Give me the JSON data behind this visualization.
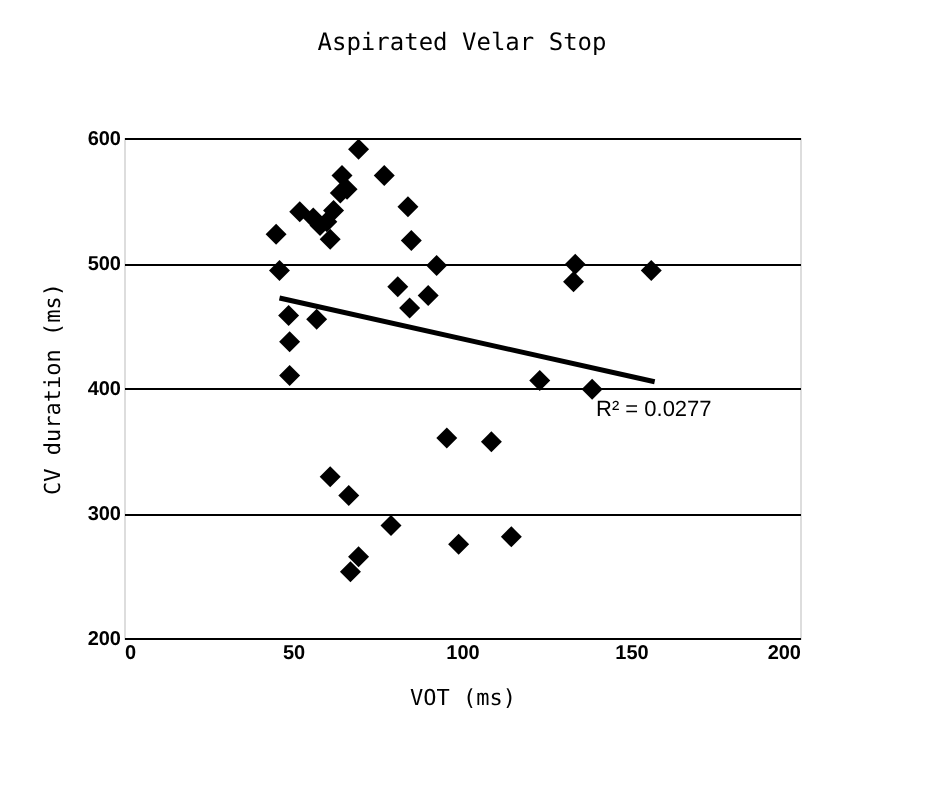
{
  "chart_data": {
    "type": "scatter",
    "title": "Aspirated Velar Stop",
    "xlabel": "VOT (ms)",
    "ylabel": "CV duration (ms)",
    "xlim": [
      0,
      200
    ],
    "xticks": [
      0,
      50,
      100,
      150,
      200
    ],
    "ylim": [
      200,
      600
    ],
    "yticks": [
      200,
      300,
      400,
      500,
      600
    ],
    "grid": "y",
    "marker": "diamond",
    "series": [
      {
        "color": "#000000",
        "x": [
          45,
          46,
          48.7,
          49,
          49,
          57,
          52,
          56,
          58,
          60,
          61,
          62,
          64,
          64.5,
          66,
          69.4,
          77,
          84,
          85,
          81,
          84.5,
          90,
          92.5,
          95.5,
          108.7,
          61,
          66.5,
          79,
          69.4,
          67,
          99,
          114.6,
          123,
          138.5,
          133,
          133.5,
          156
        ],
        "values": [
          523,
          494,
          458,
          437,
          410,
          455,
          541,
          536,
          530,
          533,
          519,
          542,
          556,
          570,
          559,
          591,
          570,
          545,
          518,
          481,
          464,
          474,
          498,
          360,
          357,
          329,
          314,
          290,
          265,
          253,
          275,
          281,
          406,
          399,
          485,
          499,
          494
        ]
      },
      {
        "type": "line",
        "color": "#000000",
        "line_style": "solid",
        "marker": "none",
        "x": [
          46,
          157
        ],
        "values": [
          472,
          405
        ]
      }
    ],
    "annotations": [
      "R² = 0.0277"
    ]
  }
}
